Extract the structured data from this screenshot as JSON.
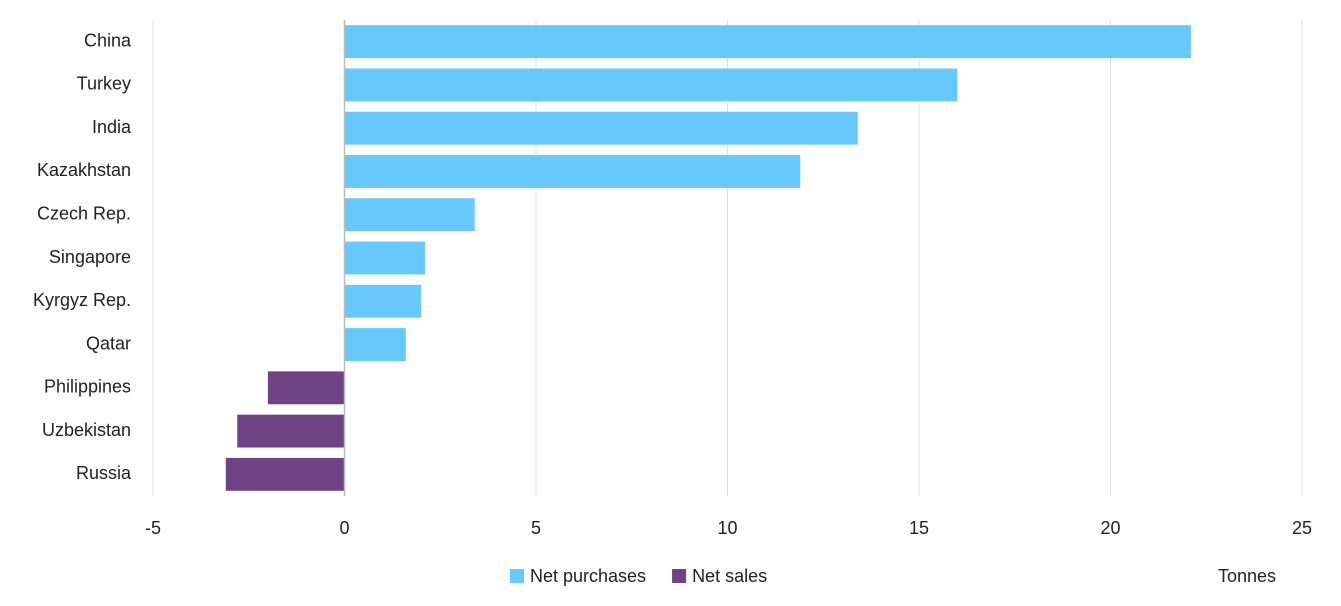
{
  "chart_data": {
    "type": "bar",
    "orientation": "horizontal",
    "x_label": "Tonnes",
    "categories": [
      "China",
      "Turkey",
      "India",
      "Kazakhstan",
      "Czech Rep.",
      "Singapore",
      "Kyrgyz Rep.",
      "Qatar",
      "Philippines",
      "Uzbekistan",
      "Russia"
    ],
    "series": [
      {
        "name": "Net purchases",
        "color": "#66c8fb",
        "values": [
          22.1,
          16.0,
          13.4,
          11.9,
          3.4,
          2.1,
          2.0,
          1.6,
          null,
          null,
          null
        ]
      },
      {
        "name": "Net sales",
        "color": "#6f4485",
        "values": [
          null,
          null,
          null,
          null,
          null,
          null,
          null,
          null,
          -2.0,
          -2.8,
          -3.1
        ]
      }
    ],
    "xlim": [
      -5,
      25
    ],
    "xticks": [
      -5,
      0,
      5,
      10,
      15,
      20,
      25
    ],
    "grid": true,
    "legend": "bottom"
  }
}
